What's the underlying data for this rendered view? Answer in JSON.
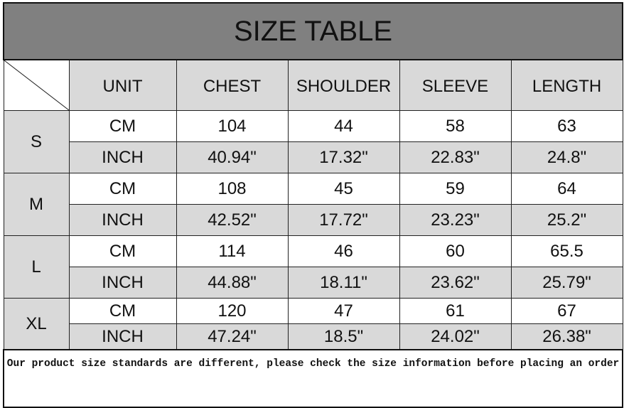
{
  "title": "SIZE TABLE",
  "headers": [
    "UNIT",
    "CHEST",
    "SHOULDER",
    "SLEEVE",
    "LENGTH"
  ],
  "rows": [
    {
      "size": "S",
      "cm": [
        "CM",
        "104",
        "44",
        "58",
        "63"
      ],
      "inch": [
        "INCH",
        "40.94\"",
        "17.32\"",
        "22.83\"",
        "24.8\""
      ]
    },
    {
      "size": "M",
      "cm": [
        "CM",
        "108",
        "45",
        "59",
        "64"
      ],
      "inch": [
        "INCH",
        "42.52\"",
        "17.72\"",
        "23.23\"",
        "25.2\""
      ]
    },
    {
      "size": "L",
      "cm": [
        "CM",
        "114",
        "46",
        "60",
        "65.5"
      ],
      "inch": [
        "INCH",
        "44.88\"",
        "18.11\"",
        "23.62\"",
        "25.79\""
      ]
    },
    {
      "size": "XL",
      "cm": [
        "CM",
        "120",
        "47",
        "61",
        "67"
      ],
      "inch": [
        "INCH",
        "47.24\"",
        "18.5\"",
        "24.02\"",
        "26.38\""
      ]
    }
  ],
  "note": "Our product size standards are different, please check the size information before placing an order",
  "colors": {
    "title_bg": "#808080",
    "cell_gray": "#d9d9d9",
    "cell_white": "#ffffff"
  }
}
